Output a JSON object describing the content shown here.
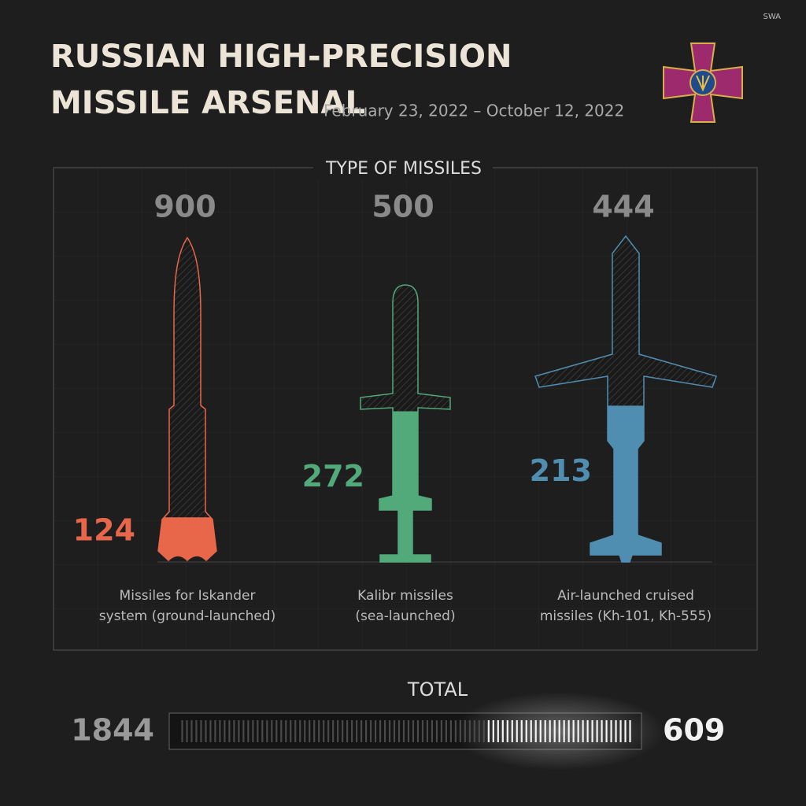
{
  "header": {
    "brand": "SWA",
    "title_lines": [
      "RUSSIAN HIGH-PRECISION",
      "MISSILE ARSENAL"
    ],
    "subtitle": "February 23, 2022 – October 12, 2022"
  },
  "panel": {
    "title": "TYPE OF MISSILES",
    "items": [
      {
        "total": 900,
        "remaining": 124,
        "color": "#e8664a",
        "label_lines": [
          "Missiles for Iskander",
          "system (ground-launched)"
        ]
      },
      {
        "total": 500,
        "remaining": 272,
        "color": "#52a97a",
        "label_lines": [
          "Kalibr missiles",
          "(sea-launched)"
        ]
      },
      {
        "total": 444,
        "remaining": 213,
        "color": "#4f8eb0",
        "label_lines": [
          "Air-launched cruised",
          "missiles (Kh-101, Kh-555)"
        ]
      }
    ]
  },
  "total": {
    "label": "TOTAL",
    "total": 1844,
    "remaining": 609
  }
}
